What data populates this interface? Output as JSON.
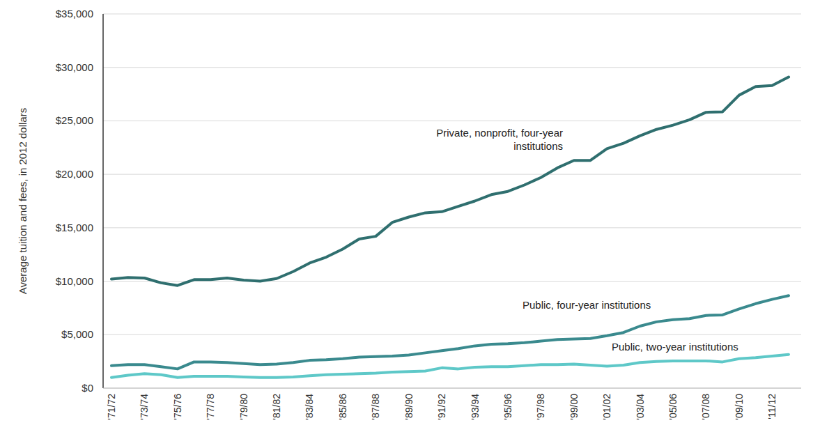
{
  "chart_data": {
    "type": "line",
    "y_label": "Average tuition and fees, in 2012 dollars",
    "categories": [
      "'71/72",
      null,
      "'73/74",
      null,
      "'75/76",
      null,
      "'77/78",
      null,
      "'79/80",
      null,
      "'81/82",
      null,
      "'83/84",
      null,
      "'85/86",
      null,
      "'87/88",
      null,
      "'89/90",
      null,
      "'91/92",
      null,
      "'93/94",
      null,
      "'95/96",
      null,
      "'97/98",
      null,
      "'99/00",
      null,
      "'01/02",
      null,
      "'03/04",
      null,
      "'05/06",
      null,
      "'07/08",
      null,
      "'09/10",
      null,
      "'11/12",
      null
    ],
    "series": [
      {
        "name": "Private, nonprofit, four-year institutions",
        "color": "#2f6f6f",
        "values": [
          10200,
          10350,
          10300,
          9850,
          9600,
          10150,
          10150,
          10300,
          10100,
          10000,
          10250,
          10900,
          11700,
          12250,
          13000,
          13950,
          14200,
          15500,
          16000,
          16400,
          16500,
          17000,
          17500,
          18100,
          18400,
          19000,
          19700,
          20600,
          21300,
          21300,
          22400,
          22900,
          23600,
          24200,
          24600,
          25100,
          25800,
          25850,
          27400,
          28200,
          28300,
          29100
        ]
      },
      {
        "name": "Public, four-year institutions",
        "color": "#3a8a8e",
        "values": [
          2100,
          2200,
          2200,
          2000,
          1800,
          2450,
          2450,
          2400,
          2300,
          2200,
          2250,
          2400,
          2600,
          2650,
          2750,
          2900,
          2950,
          3000,
          3100,
          3300,
          3500,
          3700,
          3950,
          4100,
          4150,
          4250,
          4400,
          4550,
          4600,
          4650,
          4900,
          5200,
          5800,
          6200,
          6400,
          6500,
          6800,
          6850,
          7400,
          7900,
          8300,
          8650
        ]
      },
      {
        "name": "Public, two-year institutions",
        "color": "#5ec8c8",
        "values": [
          1000,
          1200,
          1350,
          1250,
          1000,
          1100,
          1100,
          1100,
          1050,
          1000,
          1000,
          1050,
          1150,
          1250,
          1300,
          1350,
          1400,
          1500,
          1550,
          1600,
          1900,
          1800,
          1950,
          2000,
          2000,
          2100,
          2200,
          2200,
          2250,
          2150,
          2050,
          2150,
          2400,
          2500,
          2550,
          2550,
          2550,
          2450,
          2750,
          2850,
          3000,
          3150
        ]
      }
    ],
    "ylim": [
      0,
      35000
    ],
    "yticks": [
      {
        "value": 0,
        "label": "$0"
      },
      {
        "value": 5000,
        "label": "$5,000"
      },
      {
        "value": 10000,
        "label": "$10,000"
      },
      {
        "value": 15000,
        "label": "$15,000"
      },
      {
        "value": 20000,
        "label": "$20,000"
      },
      {
        "value": 25000,
        "label": "$25,000"
      },
      {
        "value": 30000,
        "label": "$30,000"
      },
      {
        "value": 35000,
        "label": "$35,000"
      }
    ],
    "grid": true
  }
}
